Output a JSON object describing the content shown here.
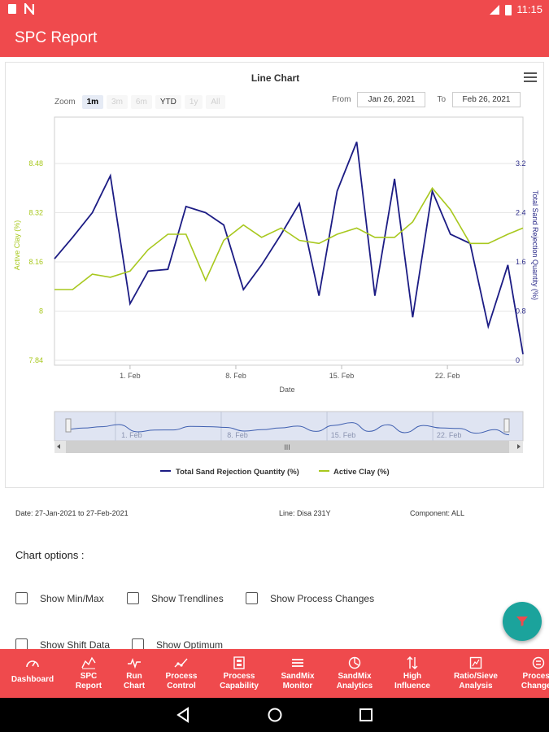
{
  "status_bar": {
    "time": "11:15"
  },
  "app_bar": {
    "title": "SPC Report"
  },
  "chart_card": {
    "title": "Line Chart",
    "zoom": {
      "label": "Zoom",
      "buttons": [
        "1m",
        "3m",
        "6m",
        "YTD",
        "1y",
        "All"
      ],
      "active": "1m"
    },
    "range": {
      "from_label": "From",
      "from_value": "Jan 26, 2021",
      "to_label": "To",
      "to_value": "Feb 26, 2021"
    },
    "navigator_scroll_label": "III"
  },
  "chart_data": {
    "type": "line",
    "title": "Line Chart",
    "xlabel": "Date",
    "x_ticks": [
      "1. Feb",
      "8. Feb",
      "15. Feb",
      "22. Feb"
    ],
    "x_range_days": [
      0,
      31
    ],
    "x_tick_days": [
      5,
      12,
      19,
      26
    ],
    "y_left": {
      "label": "Active Clay (%)",
      "ticks": [
        "7.84",
        "8",
        "8.16",
        "8.32",
        "8.48"
      ],
      "range": [
        7.84,
        8.48
      ],
      "color": "#a8c81e"
    },
    "y_right": {
      "label": "Total Sand Rejection Quantity (%)",
      "ticks": [
        "0",
        "0.8",
        "1.6",
        "2.4",
        "3.2"
      ],
      "range": [
        0,
        3.2
      ],
      "color": "#2a2a88"
    },
    "series": [
      {
        "name": "Total Sand Rejection Quantity (%)",
        "axis": "right",
        "color": "#1c1c84",
        "x": [
          0,
          1.2,
          2.5,
          3.7,
          5,
          6.2,
          7.5,
          8.7,
          10,
          11.2,
          12.5,
          13.7,
          15,
          16.2,
          17.5,
          18.7,
          20,
          21.2,
          22.5,
          23.7,
          25,
          26.2,
          27.5,
          28.7,
          30,
          31
        ],
        "values": [
          1.65,
          2.0,
          2.4,
          3.0,
          0.92,
          1.45,
          1.48,
          2.5,
          2.4,
          2.2,
          1.15,
          1.55,
          2.05,
          2.55,
          1.05,
          2.75,
          3.55,
          1.05,
          2.95,
          0.7,
          2.75,
          2.05,
          1.9,
          0.55,
          1.55,
          0.1
        ]
      },
      {
        "name": "Active Clay (%)",
        "axis": "left",
        "color": "#a8c81e",
        "x": [
          0,
          1.2,
          2.5,
          3.7,
          5,
          6.2,
          7.5,
          8.7,
          10,
          11.2,
          12.5,
          13.7,
          15,
          16.2,
          17.5,
          18.7,
          20,
          21.2,
          22.5,
          23.7,
          25,
          26.2,
          27.5,
          28.7,
          30,
          31
        ],
        "values": [
          8.07,
          8.07,
          8.12,
          8.11,
          8.13,
          8.2,
          8.25,
          8.25,
          8.1,
          8.23,
          8.28,
          8.24,
          8.27,
          8.23,
          8.22,
          8.25,
          8.27,
          8.24,
          8.24,
          8.29,
          8.4,
          8.33,
          8.22,
          8.22,
          8.25,
          8.27
        ]
      }
    ],
    "legend": [
      "Total Sand Rejection Quantity (%)",
      "Active Clay (%)"
    ]
  },
  "meta": {
    "date_range": "Date: 27-Jan-2021 to 27-Feb-2021",
    "line": "Line: Disa 231Y",
    "component": "Component: ALL"
  },
  "chart_options": {
    "label": "Chart options :",
    "options": [
      "Show Min/Max",
      "Show Trendlines",
      "Show Process Changes",
      "Show Shift Data",
      "Show Optimum"
    ]
  },
  "bottom_nav": {
    "items": [
      "Dashboard",
      "SPC\nReport",
      "Run\nChart",
      "Process\nControl",
      "Process\nCapability",
      "SandMix\nMonitor",
      "SandMix\nAnalytics",
      "High\nInfluence",
      "Ratio/Sieve\nAnalysis",
      "Process\nChanges"
    ]
  },
  "colors": {
    "primary": "#ef4a4d",
    "fab": "#1ba39c"
  }
}
